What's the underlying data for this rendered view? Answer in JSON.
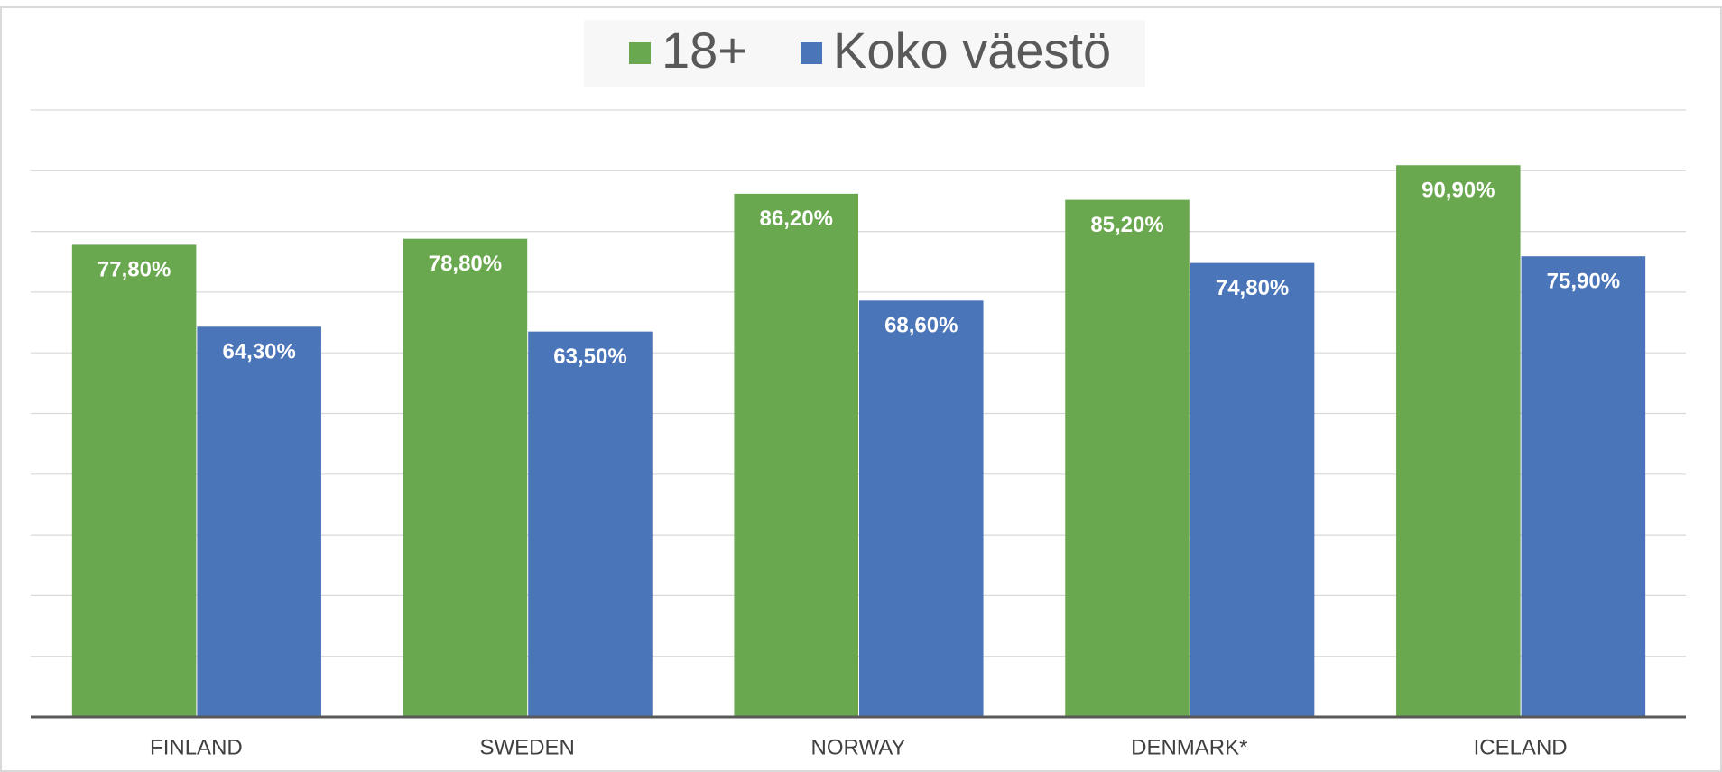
{
  "chart_data": {
    "type": "bar",
    "categories": [
      "FINLAND",
      "SWEDEN",
      "NORWAY",
      "DENMARK*",
      "ICELAND"
    ],
    "series": [
      {
        "name": "18+",
        "color": "#6aa84f",
        "values": [
          77.8,
          78.8,
          86.2,
          85.2,
          90.9
        ],
        "value_labels": [
          "77,80%",
          "78,80%",
          "86,20%",
          "85,20%",
          "90,90%"
        ]
      },
      {
        "name": "Koko väestö",
        "color": "#4a75b9",
        "values": [
          64.3,
          63.5,
          68.6,
          74.8,
          75.9
        ],
        "value_labels": [
          "64,30%",
          "63,50%",
          "68,60%",
          "74,80%",
          "75,90%"
        ]
      }
    ],
    "ylim": [
      0,
      100
    ],
    "yticks": [
      0,
      10,
      20,
      30,
      40,
      50,
      60,
      70,
      80,
      90,
      100
    ],
    "grid": true,
    "legend": "top"
  }
}
